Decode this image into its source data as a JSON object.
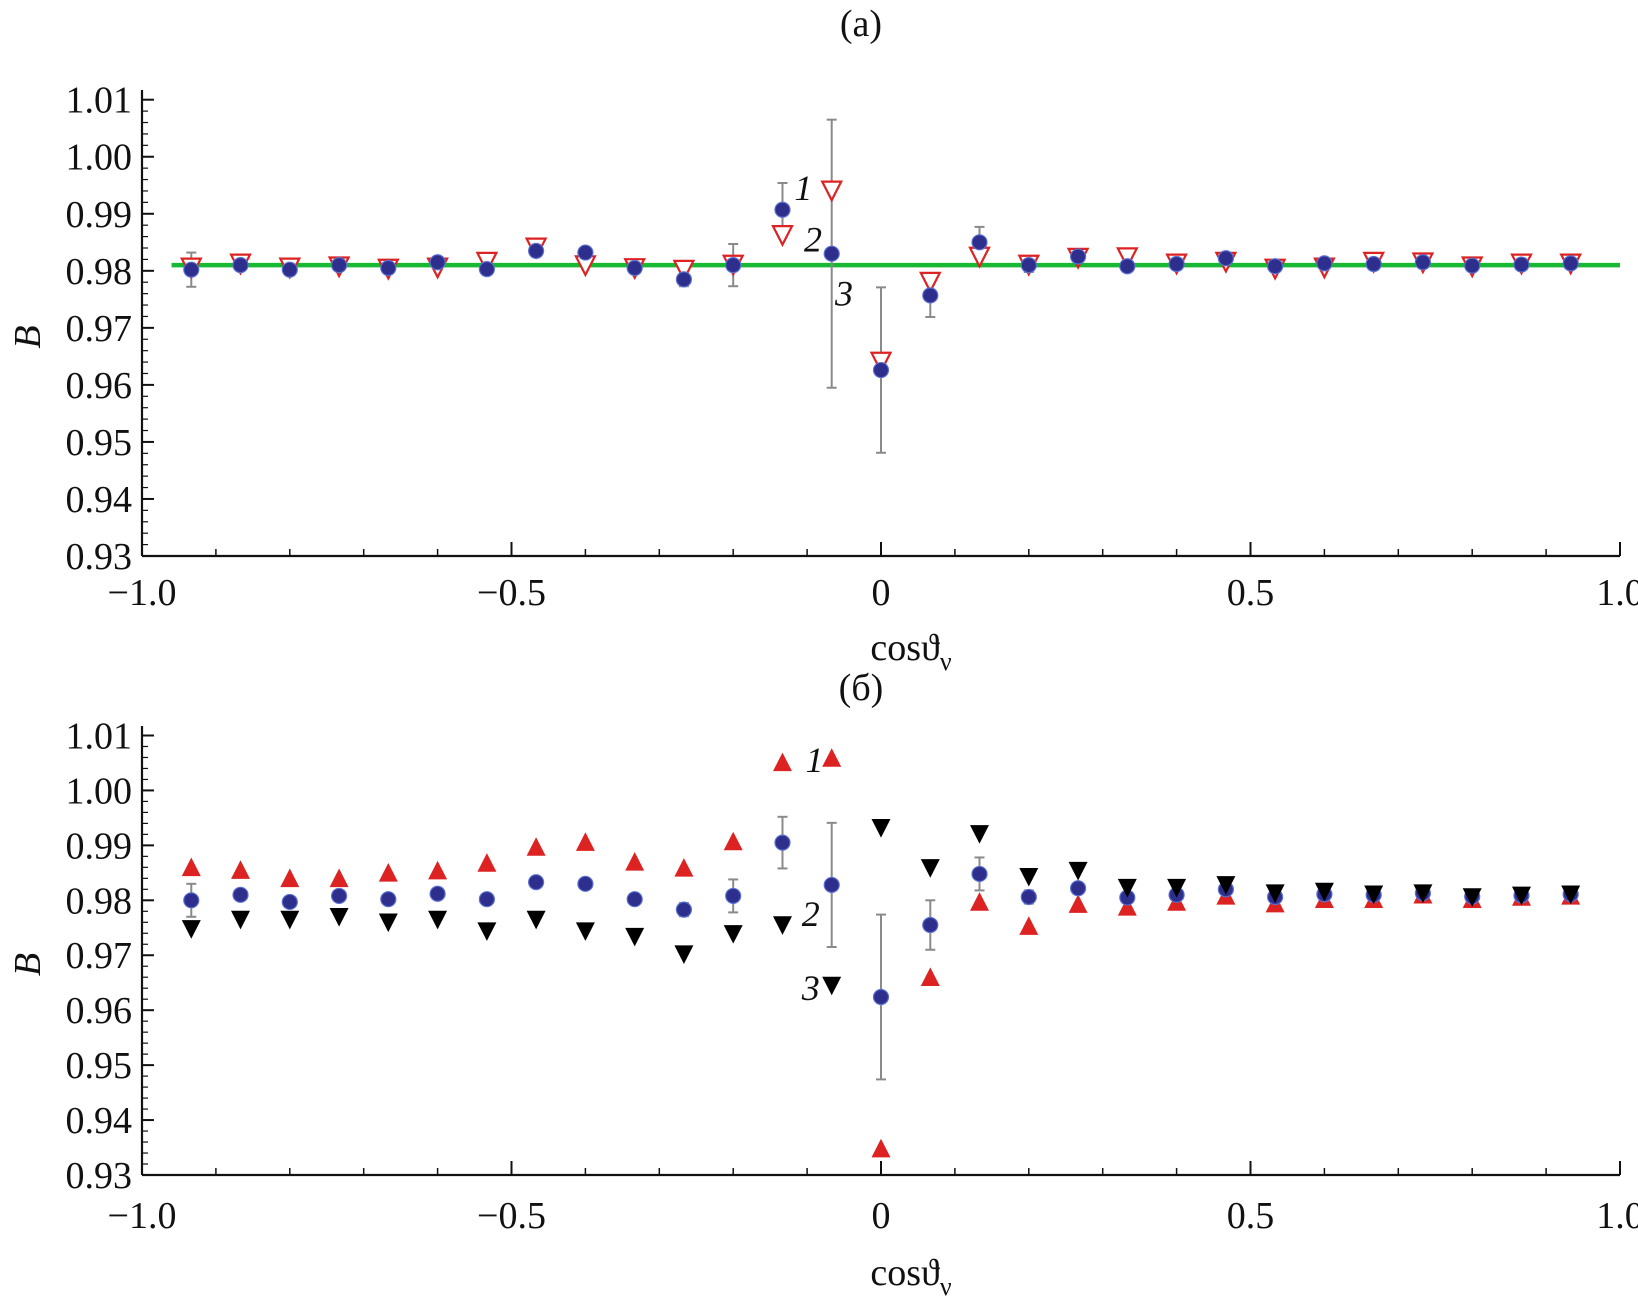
{
  "figure": {
    "colors": {
      "axis": "#111111",
      "errorbar": "#8a8a8a",
      "red": "#dd2222",
      "blue": "#2e2e8c",
      "black": "#000000",
      "green": "#17b832"
    }
  },
  "chart_data": [
    {
      "type": "scatter",
      "panel": "a",
      "title": "(a)",
      "xlabel_main": "cosϑ",
      "xlabel_sub": "ν",
      "ylabel": "B",
      "xlim": [
        -1.0,
        1.0
      ],
      "ylim": [
        0.93,
        1.011
      ],
      "xticks": [
        -1.0,
        -0.5,
        0,
        0.5,
        1.0
      ],
      "xtick_labels": [
        "−1.0",
        "−0.5",
        "0",
        "0.5",
        "1.0"
      ],
      "yticks": [
        0.93,
        0.94,
        0.95,
        0.96,
        0.97,
        0.98,
        0.99,
        1.0,
        1.01
      ],
      "ytick_labels": [
        "0.93",
        "0.94",
        "0.95",
        "0.96",
        "0.97",
        "0.98",
        "0.99",
        "1.00",
        "1.01"
      ],
      "x": [
        -0.9333,
        -0.8667,
        -0.8,
        -0.7333,
        -0.6667,
        -0.6,
        -0.5333,
        -0.4667,
        -0.4,
        -0.3333,
        -0.2667,
        -0.2,
        -0.1333,
        -0.0667,
        0.0,
        0.0667,
        0.1333,
        0.2,
        0.2667,
        0.3333,
        0.4,
        0.4667,
        0.5333,
        0.6,
        0.6667,
        0.7333,
        0.8,
        0.8667,
        0.9333
      ],
      "series": [
        {
          "name": "1",
          "marker": "triangle-down-open",
          "color": "#dd2222",
          "values": [
            0.9808,
            0.9815,
            0.9808,
            0.981,
            0.9806,
            0.9808,
            0.9818,
            0.9843,
            0.9812,
            0.9807,
            0.9804,
            0.9813,
            0.9865,
            0.9943,
            0.9643,
            0.9783,
            0.9827,
            0.9813,
            0.9825,
            0.9826,
            0.9815,
            0.9818,
            0.9806,
            0.9808,
            0.9818,
            0.9817,
            0.981,
            0.9815,
            0.9815
          ]
        },
        {
          "name": "2",
          "marker": "circle",
          "color": "#2e2e8c",
          "values": [
            0.9802,
            0.981,
            0.9802,
            0.981,
            0.9805,
            0.9815,
            0.9803,
            0.9835,
            0.9832,
            0.9805,
            0.9785,
            0.981,
            0.9907,
            0.983,
            0.9626,
            0.9757,
            0.985,
            0.981,
            0.9825,
            0.9808,
            0.9812,
            0.9822,
            0.9808,
            0.9813,
            0.9812,
            0.9815,
            0.9809,
            0.9811,
            0.9813
          ],
          "errors": [
            0.003,
            0.0008,
            0.0005,
            0.0005,
            0.0005,
            0.0006,
            0.0006,
            0.001,
            0.0008,
            0.0008,
            0.0012,
            0.0037,
            0.0047,
            0.0235,
            0.0145,
            0.0038,
            0.0027,
            0.0012,
            0.0009,
            0.0006,
            0.0006,
            0.0005,
            0.0004,
            0.0004,
            0.0004,
            0.0004,
            0.0004,
            0.0004,
            0.0004
          ]
        },
        {
          "name": "3",
          "marker": "line",
          "color": "#17b832",
          "value": 0.981
        }
      ],
      "series_labels": [
        {
          "text": "1",
          "x": -0.105,
          "y": 0.9945
        },
        {
          "text": "2",
          "x": -0.092,
          "y": 0.9855
        },
        {
          "text": "3",
          "x": -0.05,
          "y": 0.976
        }
      ]
    },
    {
      "type": "scatter",
      "panel": "б",
      "title": "(б)",
      "xlabel_main": "cosϑ",
      "xlabel_sub": "ν",
      "ylabel": "B",
      "xlim": [
        -1.0,
        1.0
      ],
      "ylim": [
        0.93,
        1.011
      ],
      "xticks": [
        -1.0,
        -0.5,
        0,
        0.5,
        1.0
      ],
      "xtick_labels": [
        "−1.0",
        "−0.5",
        "0",
        "0.5",
        "1.0"
      ],
      "yticks": [
        0.93,
        0.94,
        0.95,
        0.96,
        0.97,
        0.98,
        0.99,
        1.0,
        1.01
      ],
      "ytick_labels": [
        "0.93",
        "0.94",
        "0.95",
        "0.96",
        "0.97",
        "0.98",
        "0.99",
        "1.00",
        "1.01"
      ],
      "x": [
        -0.9333,
        -0.8667,
        -0.8,
        -0.7333,
        -0.6667,
        -0.6,
        -0.5333,
        -0.4667,
        -0.4,
        -0.3333,
        -0.2667,
        -0.2,
        -0.1333,
        -0.0667,
        0.0,
        0.0667,
        0.1333,
        0.2,
        0.2667,
        0.3333,
        0.4,
        0.4667,
        0.5333,
        0.6,
        0.6667,
        0.7333,
        0.8,
        0.8667,
        0.9333
      ],
      "series": [
        {
          "name": "1",
          "marker": "triangle-up",
          "color": "#dd2222",
          "values": [
            0.9858,
            0.9853,
            0.9838,
            0.9838,
            0.9848,
            0.9852,
            0.9866,
            0.9895,
            0.9904,
            0.9868,
            0.9857,
            0.9905,
            1.0049,
            1.0057,
            0.9346,
            0.9658,
            0.9795,
            0.9751,
            0.9791,
            0.9786,
            0.9795,
            0.9806,
            0.9792,
            0.98,
            0.98,
            0.9808,
            0.98,
            0.9804,
            0.9806
          ]
        },
        {
          "name": "2",
          "marker": "circle",
          "color": "#2e2e8c",
          "values": [
            0.98,
            0.981,
            0.9797,
            0.9808,
            0.9802,
            0.9812,
            0.9802,
            0.9833,
            0.983,
            0.9802,
            0.9783,
            0.9808,
            0.9905,
            0.9828,
            0.9624,
            0.9755,
            0.9848,
            0.9806,
            0.9822,
            0.9805,
            0.981,
            0.982,
            0.9806,
            0.9811,
            0.981,
            0.9813,
            0.9807,
            0.9809,
            0.9811
          ],
          "errors": [
            0.003,
            0.0008,
            0.0005,
            0.0005,
            0.0005,
            0.0006,
            0.0006,
            0.001,
            0.0008,
            0.0008,
            0.0012,
            0.003,
            0.0047,
            0.0113,
            0.015,
            0.0045,
            0.003,
            0.0012,
            0.0009,
            0.0006,
            0.0006,
            0.0005,
            0.0004,
            0.0004,
            0.0004,
            0.0004,
            0.0004,
            0.0004,
            0.0004
          ]
        },
        {
          "name": "3",
          "marker": "triangle-down",
          "color": "#000000",
          "values": [
            0.975,
            0.9767,
            0.9767,
            0.9772,
            0.9762,
            0.9767,
            0.9746,
            0.9767,
            0.9746,
            0.9736,
            0.9704,
            0.9741,
            0.9757,
            0.9647,
            0.9934,
            0.9861,
            0.9923,
            0.9845,
            0.9856,
            0.9825,
            0.9825,
            0.983,
            0.9815,
            0.9818,
            0.9813,
            0.9815,
            0.9808,
            0.9811,
            0.9813
          ]
        }
      ],
      "series_labels": [
        {
          "text": "1",
          "x": -0.09,
          "y": 1.0055
        },
        {
          "text": "2",
          "x": -0.095,
          "y": 0.9775
        },
        {
          "text": "3",
          "x": -0.095,
          "y": 0.964
        }
      ]
    }
  ]
}
